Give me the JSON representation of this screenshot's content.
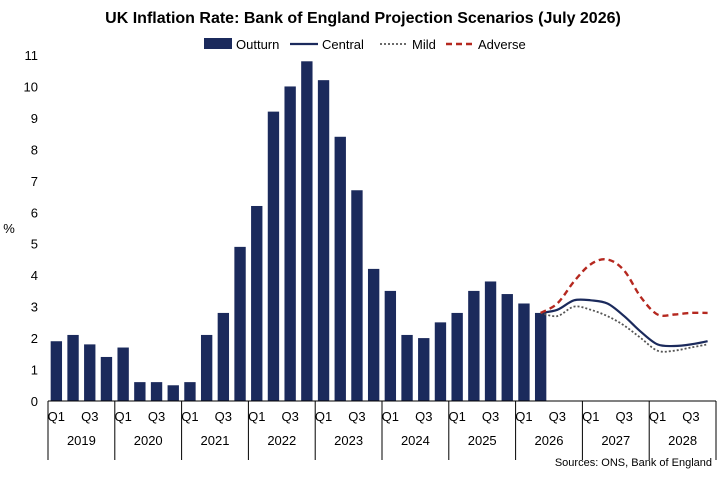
{
  "chart_data": {
    "type": "bar",
    "title": "UK Inflation Rate: Bank of England Projection Scenarios (July 2026)",
    "ylabel": "%",
    "xlabel": "",
    "ylim": [
      0,
      11
    ],
    "yticks": [
      "0",
      "1",
      "2",
      "3",
      "4",
      "5",
      "6",
      "7",
      "8",
      "9",
      "10",
      "11"
    ],
    "grid": false,
    "legend_position": "top",
    "source": "Sources: ONS, Bank of England",
    "quarters": [
      "2019 Q1",
      "2019 Q2",
      "2019 Q3",
      "2019 Q4",
      "2020 Q1",
      "2020 Q2",
      "2020 Q3",
      "2020 Q4",
      "2021 Q1",
      "2021 Q2",
      "2021 Q3",
      "2021 Q4",
      "2022 Q1",
      "2022 Q2",
      "2022 Q3",
      "2022 Q4",
      "2023 Q1",
      "2023 Q2",
      "2023 Q3",
      "2023 Q4",
      "2024 Q1",
      "2024 Q2",
      "2024 Q3",
      "2024 Q4",
      "2025 Q1",
      "2025 Q2",
      "2025 Q3",
      "2025 Q4",
      "2026 Q1",
      "2026 Q2",
      "2026 Q3",
      "2026 Q4",
      "2027 Q1",
      "2027 Q2",
      "2027 Q3",
      "2027 Q4",
      "2028 Q1",
      "2028 Q2",
      "2028 Q3",
      "2028 Q4"
    ],
    "quarter_tick_labels": [
      "Q1",
      "",
      "Q3",
      "",
      "Q1",
      "",
      "Q3",
      "",
      "Q1",
      "",
      "Q3",
      "",
      "Q1",
      "",
      "Q3",
      "",
      "Q1",
      "",
      "Q3",
      "",
      "Q1",
      "",
      "Q3",
      "",
      "Q1",
      "",
      "Q3",
      "",
      "Q1",
      "",
      "Q3",
      "",
      "Q1",
      "",
      "Q3",
      "",
      "Q1",
      "",
      "Q3",
      ""
    ],
    "years": [
      "2019",
      "2020",
      "2021",
      "2022",
      "2023",
      "2024",
      "2025",
      "2026",
      "2027",
      "2028"
    ],
    "series": [
      {
        "name": "Outturn",
        "kind": "bar",
        "color": "#1b2a5c",
        "start_index": 0,
        "values": [
          1.9,
          2.1,
          1.8,
          1.4,
          1.7,
          0.6,
          0.6,
          0.5,
          0.6,
          2.1,
          2.8,
          4.9,
          6.2,
          9.2,
          10.0,
          10.8,
          10.2,
          8.4,
          6.7,
          4.2,
          3.5,
          2.1,
          2.0,
          2.5,
          2.8,
          3.5,
          3.8,
          3.4,
          3.1,
          2.8
        ]
      },
      {
        "name": "Central",
        "kind": "line",
        "style": "solid",
        "color": "#1b2a5c",
        "start_index": 29,
        "values": [
          2.8,
          2.9,
          3.2,
          3.2,
          3.1,
          2.7,
          2.2,
          1.8,
          1.75,
          1.8,
          1.9
        ]
      },
      {
        "name": "Mild",
        "kind": "line",
        "style": "dotted",
        "color": "#555555",
        "start_index": 29,
        "values": [
          2.8,
          2.7,
          3.0,
          2.9,
          2.7,
          2.4,
          2.0,
          1.6,
          1.6,
          1.7,
          1.8
        ]
      },
      {
        "name": "Adverse",
        "kind": "line",
        "style": "dashed",
        "color": "#b5281f",
        "start_index": 29,
        "values": [
          2.8,
          3.1,
          3.8,
          4.35,
          4.5,
          4.15,
          3.3,
          2.75,
          2.75,
          2.8,
          2.8
        ]
      }
    ]
  }
}
